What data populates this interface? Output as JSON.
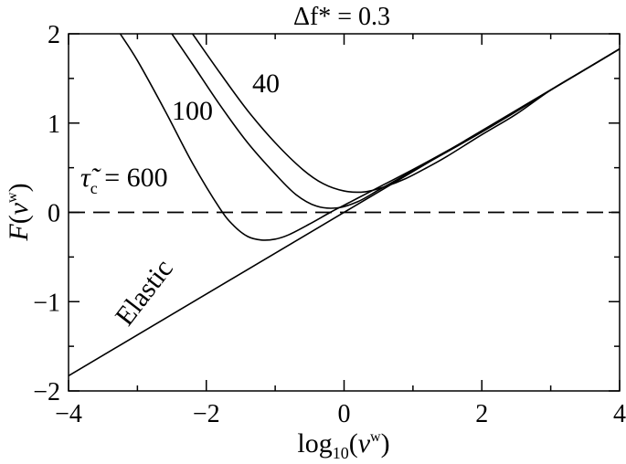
{
  "chart_data": {
    "type": "line",
    "title": "Δf* = 0.3",
    "xlabel": "log10(νw)",
    "ylabel": "F(νw)",
    "xlim": [
      -4,
      4
    ],
    "ylim": [
      -2,
      2
    ],
    "x_ticks": [
      -4,
      -2,
      0,
      2,
      4
    ],
    "x_tick_labels": [
      "−4",
      "−2",
      "0",
      "2",
      "4"
    ],
    "y_ticks": [
      -2,
      -1,
      0,
      1,
      2
    ],
    "y_tick_labels": [
      "−2",
      "−1",
      "0",
      "1",
      "2"
    ],
    "grid": false,
    "legend": "none",
    "reference_line": {
      "y": 0,
      "style": "dashed"
    },
    "series": [
      {
        "name": "Elastic",
        "x": [
          -4,
          4
        ],
        "y": [
          -1.83,
          1.83
        ]
      },
      {
        "name": "40",
        "x": [
          -2.2,
          -1.8,
          -1.4,
          -1.0,
          -0.6,
          -0.3,
          0.0,
          0.3,
          0.6,
          0.9,
          1.2,
          1.5,
          2.0,
          2.5,
          3.0,
          3.5,
          4.0
        ],
        "y": [
          2.0,
          1.56,
          1.14,
          0.78,
          0.48,
          0.32,
          0.24,
          0.23,
          0.29,
          0.38,
          0.5,
          0.63,
          0.87,
          1.1,
          1.37,
          1.6,
          1.83
        ]
      },
      {
        "name": "100",
        "x": [
          -2.5,
          -2.2,
          -1.8,
          -1.4,
          -1.0,
          -0.7,
          -0.4,
          -0.1,
          0.2,
          0.5,
          0.8,
          1.1,
          1.5,
          2.0,
          2.5,
          3.0,
          3.5,
          4.0
        ],
        "y": [
          2.0,
          1.66,
          1.2,
          0.78,
          0.43,
          0.2,
          0.07,
          0.05,
          0.12,
          0.25,
          0.38,
          0.51,
          0.68,
          0.9,
          1.13,
          1.37,
          1.6,
          1.83
        ]
      },
      {
        "name": "600",
        "x": [
          -3.25,
          -3.0,
          -2.6,
          -2.2,
          -1.8,
          -1.6,
          -1.4,
          -1.2,
          -1.0,
          -0.8,
          -0.5,
          -0.2,
          0.0,
          0.3,
          0.6,
          1.0,
          1.5,
          2.0,
          3.0,
          4.0
        ],
        "y": [
          2.0,
          1.7,
          1.14,
          0.55,
          0.04,
          -0.15,
          -0.27,
          -0.31,
          -0.3,
          -0.25,
          -0.13,
          0.0,
          0.08,
          0.2,
          0.32,
          0.48,
          0.69,
          0.91,
          1.37,
          1.83
        ]
      }
    ],
    "curve_labels": [
      {
        "text": "40",
        "series": "40"
      },
      {
        "text": "100",
        "series": "100"
      },
      {
        "text": "= 600",
        "series": "600",
        "prefix_symbol": "τ̃c"
      },
      {
        "text": "Elastic",
        "series": "Elastic"
      }
    ]
  }
}
